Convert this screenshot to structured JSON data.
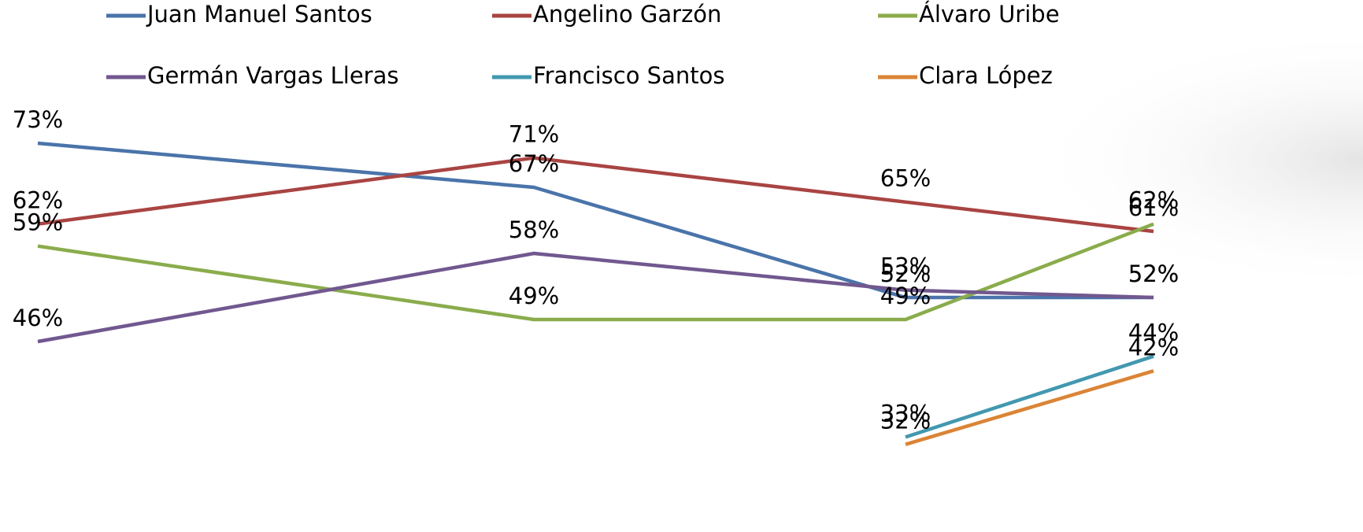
{
  "chart_data": {
    "type": "line",
    "categories": [
      null,
      null,
      null,
      null
    ],
    "ylim": [
      25,
      80
    ],
    "series": [
      {
        "name": "Juan Manuel Santos",
        "color": "#4a74aa",
        "values": [
          73,
          67,
          52,
          52
        ],
        "value_labels": [
          "73%",
          "67%",
          "52%",
          "52%"
        ]
      },
      {
        "name": "Angelino Garzón",
        "color": "#a94442",
        "values": [
          62,
          71,
          65,
          61
        ],
        "value_labels": [
          "62%",
          "71%",
          "65%",
          "61%"
        ]
      },
      {
        "name": "Álvaro Uribe",
        "color": "#8aac4c",
        "values": [
          59,
          49,
          49,
          62
        ],
        "value_labels": [
          "59%",
          "49%",
          "49%",
          "62%"
        ]
      },
      {
        "name": "Germán Vargas Lleras",
        "color": "#71588f",
        "values": [
          46,
          58,
          53,
          52
        ],
        "value_labels": [
          "46%",
          "58%",
          "53%",
          "52%"
        ]
      },
      {
        "name": "Francisco Santos",
        "color": "#4298af",
        "values": [
          null,
          null,
          33,
          44
        ],
        "value_labels": [
          null,
          null,
          "33%",
          "44%"
        ]
      },
      {
        "name": "Clara López",
        "color": "#db8436",
        "values": [
          null,
          null,
          32,
          42
        ],
        "value_labels": [
          null,
          null,
          "32%",
          "42%"
        ]
      }
    ]
  }
}
